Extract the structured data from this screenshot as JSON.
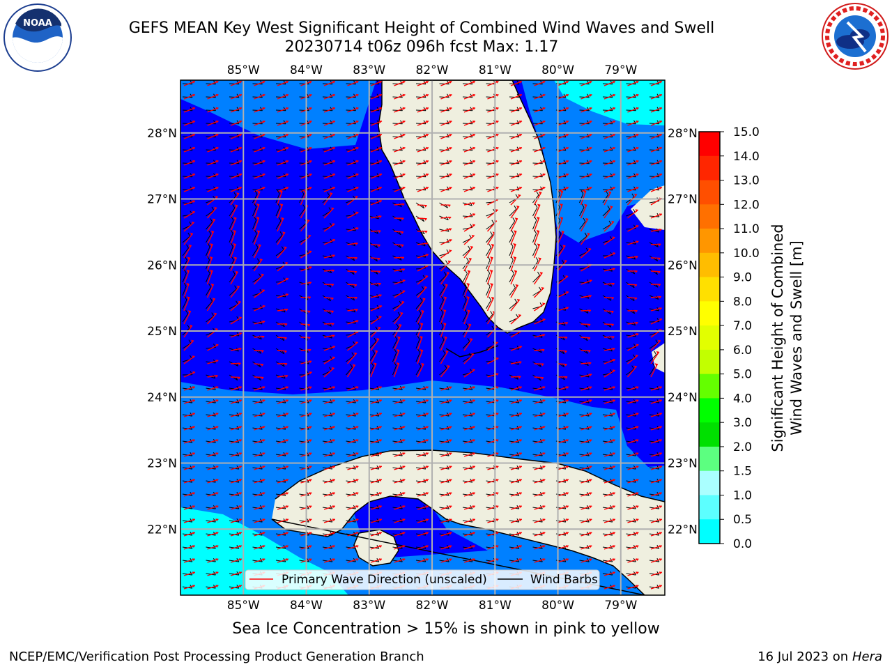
{
  "header": {
    "title_line1": "GEFS MEAN Key West Significant Height of Combined Wind Waves and Swell",
    "title_line2": "20230714 t06z 096h fcst   Max: 1.17"
  },
  "logos": {
    "left": "NOAA",
    "left_ring_text": "NATIONAL OCEANIC AND ATMOSPHERIC ADMINISTRATION · U.S. DEPARTMENT OF COMMERCE",
    "right_ring_text": "NATIONAL WEATHER SERVICE"
  },
  "map": {
    "lon_ticks": [
      "85°W",
      "84°W",
      "83°W",
      "82°W",
      "81°W",
      "80°W",
      "79°W"
    ],
    "lon_values": [
      -85,
      -84,
      -83,
      -82,
      -81,
      -80,
      -79
    ],
    "lat_ticks": [
      "28°N",
      "27°N",
      "26°N",
      "25°N",
      "24°N",
      "23°N",
      "22°N"
    ],
    "lat_values": [
      28,
      27,
      26,
      25,
      24,
      23,
      22
    ],
    "lon_range": [
      -86,
      -78.3
    ],
    "lat_range": [
      21,
      28.8
    ],
    "legend": {
      "wave_label": "Primary Wave Direction (unscaled)",
      "barb_label": "Wind Barbs"
    },
    "colors": {
      "land": "#efefdf",
      "level_0": "#0000ff",
      "level_05": "#0080ff",
      "level_10": "#00ffff",
      "arrow": "#ff0000",
      "grid": "#b0b0b0"
    }
  },
  "colorbar": {
    "title_line1": "Significant Height of Combined",
    "title_line2": "Wind Waves and Swell [m]",
    "tick_labels": [
      "15.0",
      "14.0",
      "13.0",
      "12.0",
      "11.0",
      "10.0",
      "9.0",
      "8.0",
      "7.0",
      "6.0",
      "5.0",
      "4.0",
      "3.0",
      "2.0",
      "1.5",
      "1.0",
      "0.5",
      "0.0"
    ],
    "colors": [
      "#ff0000",
      "#ff2600",
      "#ff4f00",
      "#ff7000",
      "#ff9600",
      "#ffbd00",
      "#ffe000",
      "#ffff00",
      "#e2ff00",
      "#c2ff00",
      "#64ff00",
      "#00ff00",
      "#00e000",
      "#5cff80",
      "#aaffff",
      "#5cffff",
      "#00ffff",
      "#0080ff",
      "#0000ff"
    ]
  },
  "footer": {
    "ice_note": "Sea Ice Concentration > 15% is shown in pink to yellow",
    "left": "NCEP/EMC/Verification Post Processing Product Generation Branch",
    "right_prefix": "16 Jul 2023 on ",
    "right_host": "Hera"
  }
}
